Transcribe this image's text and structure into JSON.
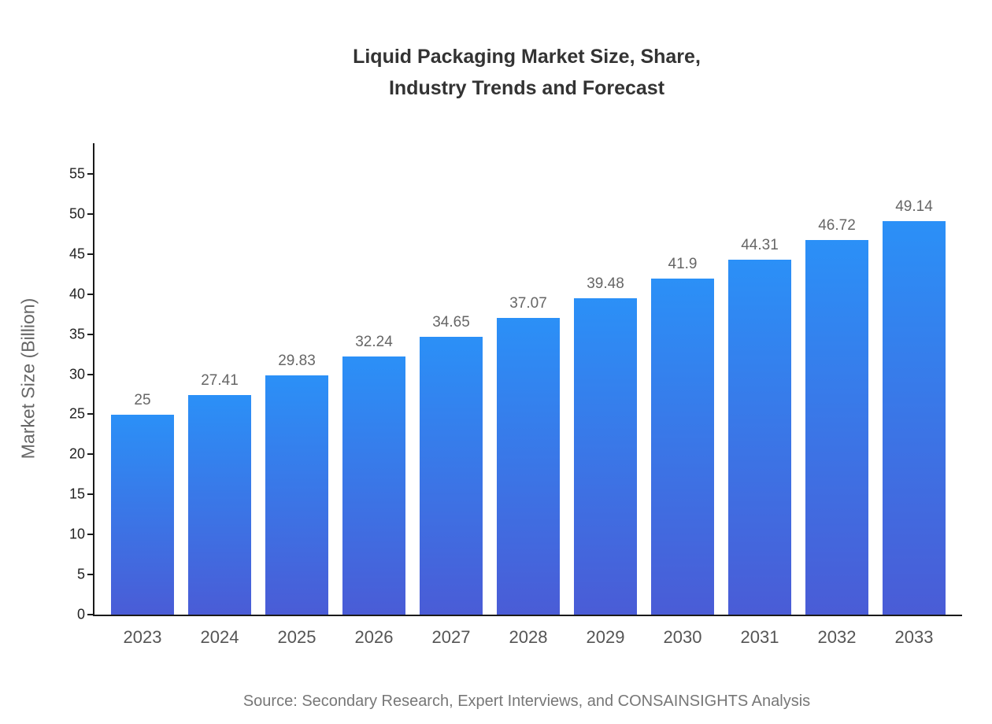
{
  "title": {
    "line1": "Liquid Packaging Market Size, Share,",
    "line2": "Industry Trends and Forecast"
  },
  "source": "Source: Secondary Research, Expert Interviews, and CONSAINSIGHTS Analysis",
  "chart_data": {
    "type": "bar",
    "title": "Liquid Packaging Market Size, Share, Industry Trends and Forecast",
    "xlabel": "",
    "ylabel": "Market Size (Billion)",
    "categories": [
      "2023",
      "2024",
      "2025",
      "2026",
      "2027",
      "2028",
      "2029",
      "2030",
      "2031",
      "2032",
      "2033"
    ],
    "values": [
      25,
      27.41,
      29.83,
      32.24,
      34.65,
      37.07,
      39.48,
      41.9,
      44.31,
      46.72,
      49.14
    ],
    "value_labels": [
      "25",
      "27.41",
      "29.83",
      "32.24",
      "34.65",
      "37.07",
      "39.48",
      "41.9",
      "44.31",
      "46.72",
      "49.14"
    ],
    "yticks": [
      0,
      5,
      10,
      15,
      20,
      25,
      30,
      35,
      40,
      45,
      50,
      55
    ],
    "ylim": [
      0,
      58
    ],
    "grid": false,
    "legend": "none",
    "colors": {
      "bar_top": "#2b90f7",
      "bar_bottom": "#4a5cd6",
      "axis": "#1a1a1a",
      "value_label": "#666666",
      "tick_label": "#222222",
      "category_label": "#555555",
      "title": "#333333",
      "source": "#777777"
    }
  }
}
